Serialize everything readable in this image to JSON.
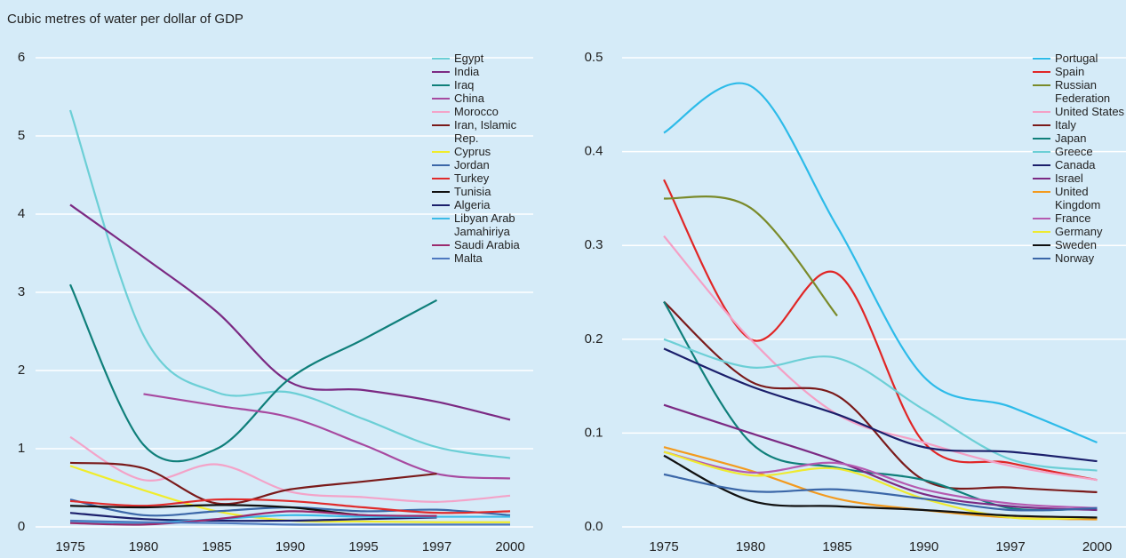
{
  "title": "Cubic metres of water per dollar of GDP",
  "chart_data": [
    {
      "type": "line",
      "categories": [
        "1975",
        "1980",
        "1985",
        "1990",
        "1995",
        "1997",
        "2000"
      ],
      "ylim": [
        0,
        6
      ],
      "yticks": [
        0,
        1,
        2,
        3,
        4,
        5,
        6
      ],
      "grid": true,
      "series": [
        {
          "name": "Egypt",
          "color": "#6ccfd6",
          "values": [
            5.33,
            2.45,
            1.72,
            1.72,
            1.38,
            1.02,
            0.88
          ]
        },
        {
          "name": "India",
          "color": "#7b2a83",
          "values": [
            4.12,
            3.45,
            2.75,
            1.85,
            1.75,
            1.6,
            1.37
          ]
        },
        {
          "name": "Iraq",
          "color": "#0f7f7a",
          "values": [
            3.1,
            1.05,
            1.0,
            1.9,
            2.4,
            2.9,
            null
          ]
        },
        {
          "name": "China",
          "color": "#a74aa0",
          "values": [
            null,
            1.7,
            1.55,
            1.4,
            1.05,
            0.68,
            0.62
          ]
        },
        {
          "name": "Morocco",
          "color": "#f3a3c8",
          "values": [
            1.15,
            0.6,
            0.8,
            0.45,
            0.38,
            0.32,
            0.4
          ]
        },
        {
          "name": "Iran, Islamic Rep.",
          "color": "#7a1a1a",
          "values": [
            0.82,
            0.75,
            0.3,
            0.48,
            0.58,
            0.68,
            null
          ]
        },
        {
          "name": "Cyprus",
          "color": "#f0ec2c",
          "values": [
            0.78,
            0.47,
            0.2,
            0.08,
            0.07,
            0.06,
            0.06
          ]
        },
        {
          "name": "Jordan",
          "color": "#3b67a8",
          "values": [
            0.35,
            0.15,
            0.2,
            0.25,
            0.2,
            0.22,
            0.15
          ]
        },
        {
          "name": "Turkey",
          "color": "#e02b2b",
          "values": [
            0.33,
            0.27,
            0.35,
            0.33,
            0.25,
            0.18,
            0.2
          ]
        },
        {
          "name": "Tunisia",
          "color": "#111111",
          "values": [
            0.27,
            0.25,
            0.28,
            0.25,
            0.15,
            0.13,
            null
          ]
        },
        {
          "name": "Algeria",
          "color": "#1b1f6b",
          "values": [
            0.18,
            0.1,
            0.08,
            0.08,
            0.1,
            0.12,
            null
          ]
        },
        {
          "name": "Libyan Arab Jamahiriya",
          "color": "#3bbbe8",
          "values": [
            0.07,
            0.05,
            0.1,
            0.15,
            0.13,
            0.13,
            0.13
          ]
        },
        {
          "name": "Saudi Arabia",
          "color": "#9b2b6e",
          "values": [
            0.05,
            0.03,
            0.1,
            0.2,
            0.15,
            0.14,
            null
          ]
        },
        {
          "name": "Malta",
          "color": "#4e79c0",
          "values": [
            0.08,
            0.06,
            0.05,
            0.03,
            0.03,
            0.03,
            0.03
          ]
        }
      ]
    },
    {
      "type": "line",
      "categories": [
        "1975",
        "1980",
        "1985",
        "1990",
        "1997",
        "2000"
      ],
      "ylim": [
        0,
        0.5
      ],
      "yticks": [
        {
          "value": 0,
          "label": "0.0"
        },
        0.1,
        0.2,
        0.3,
        0.4,
        0.5
      ],
      "grid": true,
      "series": [
        {
          "name": "Portugal",
          "color": "#2dbbe9",
          "values": [
            0.42,
            0.47,
            0.32,
            0.16,
            0.128,
            0.09
          ]
        },
        {
          "name": "Spain",
          "color": "#e02626",
          "values": [
            0.37,
            0.2,
            0.27,
            0.09,
            0.068,
            0.05
          ]
        },
        {
          "name": "Russian Federation",
          "color": "#7a8a2a",
          "values": [
            0.35,
            0.34,
            0.225,
            null,
            null,
            null
          ]
        },
        {
          "name": "United States",
          "color": "#f4a0c5",
          "values": [
            0.31,
            0.2,
            0.12,
            0.09,
            0.065,
            0.05
          ]
        },
        {
          "name": "Italy",
          "color": "#7a1a1a",
          "values": [
            0.24,
            0.155,
            0.14,
            0.05,
            0.042,
            0.037
          ]
        },
        {
          "name": "Japan",
          "color": "#0f7f7a",
          "values": [
            0.24,
            0.09,
            0.063,
            0.05,
            0.02,
            0.02
          ]
        },
        {
          "name": "Greece",
          "color": "#6ccfd6",
          "values": [
            0.2,
            0.17,
            0.18,
            0.125,
            0.072,
            0.06
          ]
        },
        {
          "name": "Canada",
          "color": "#1b1f6b",
          "values": [
            0.19,
            0.15,
            0.12,
            0.085,
            0.08,
            0.07
          ]
        },
        {
          "name": "Israel",
          "color": "#7b2a83",
          "values": [
            0.13,
            0.1,
            0.07,
            0.035,
            0.022,
            0.018
          ]
        },
        {
          "name": "United Kingdom",
          "color": "#f39a1e",
          "values": [
            0.085,
            0.06,
            0.03,
            0.018,
            0.01,
            0.008
          ]
        },
        {
          "name": "France",
          "color": "#b55ab0",
          "values": [
            0.08,
            0.058,
            0.068,
            0.04,
            0.025,
            0.02
          ]
        },
        {
          "name": "Germany",
          "color": "#eeea30",
          "values": [
            0.08,
            0.055,
            0.062,
            0.03,
            0.01,
            0.01
          ]
        },
        {
          "name": "Sweden",
          "color": "#111111",
          "values": [
            0.076,
            0.028,
            0.022,
            0.018,
            0.012,
            0.01
          ]
        },
        {
          "name": "Norway",
          "color": "#3b67a8",
          "values": [
            0.056,
            0.038,
            0.04,
            0.03,
            0.018,
            0.02
          ]
        }
      ]
    }
  ]
}
